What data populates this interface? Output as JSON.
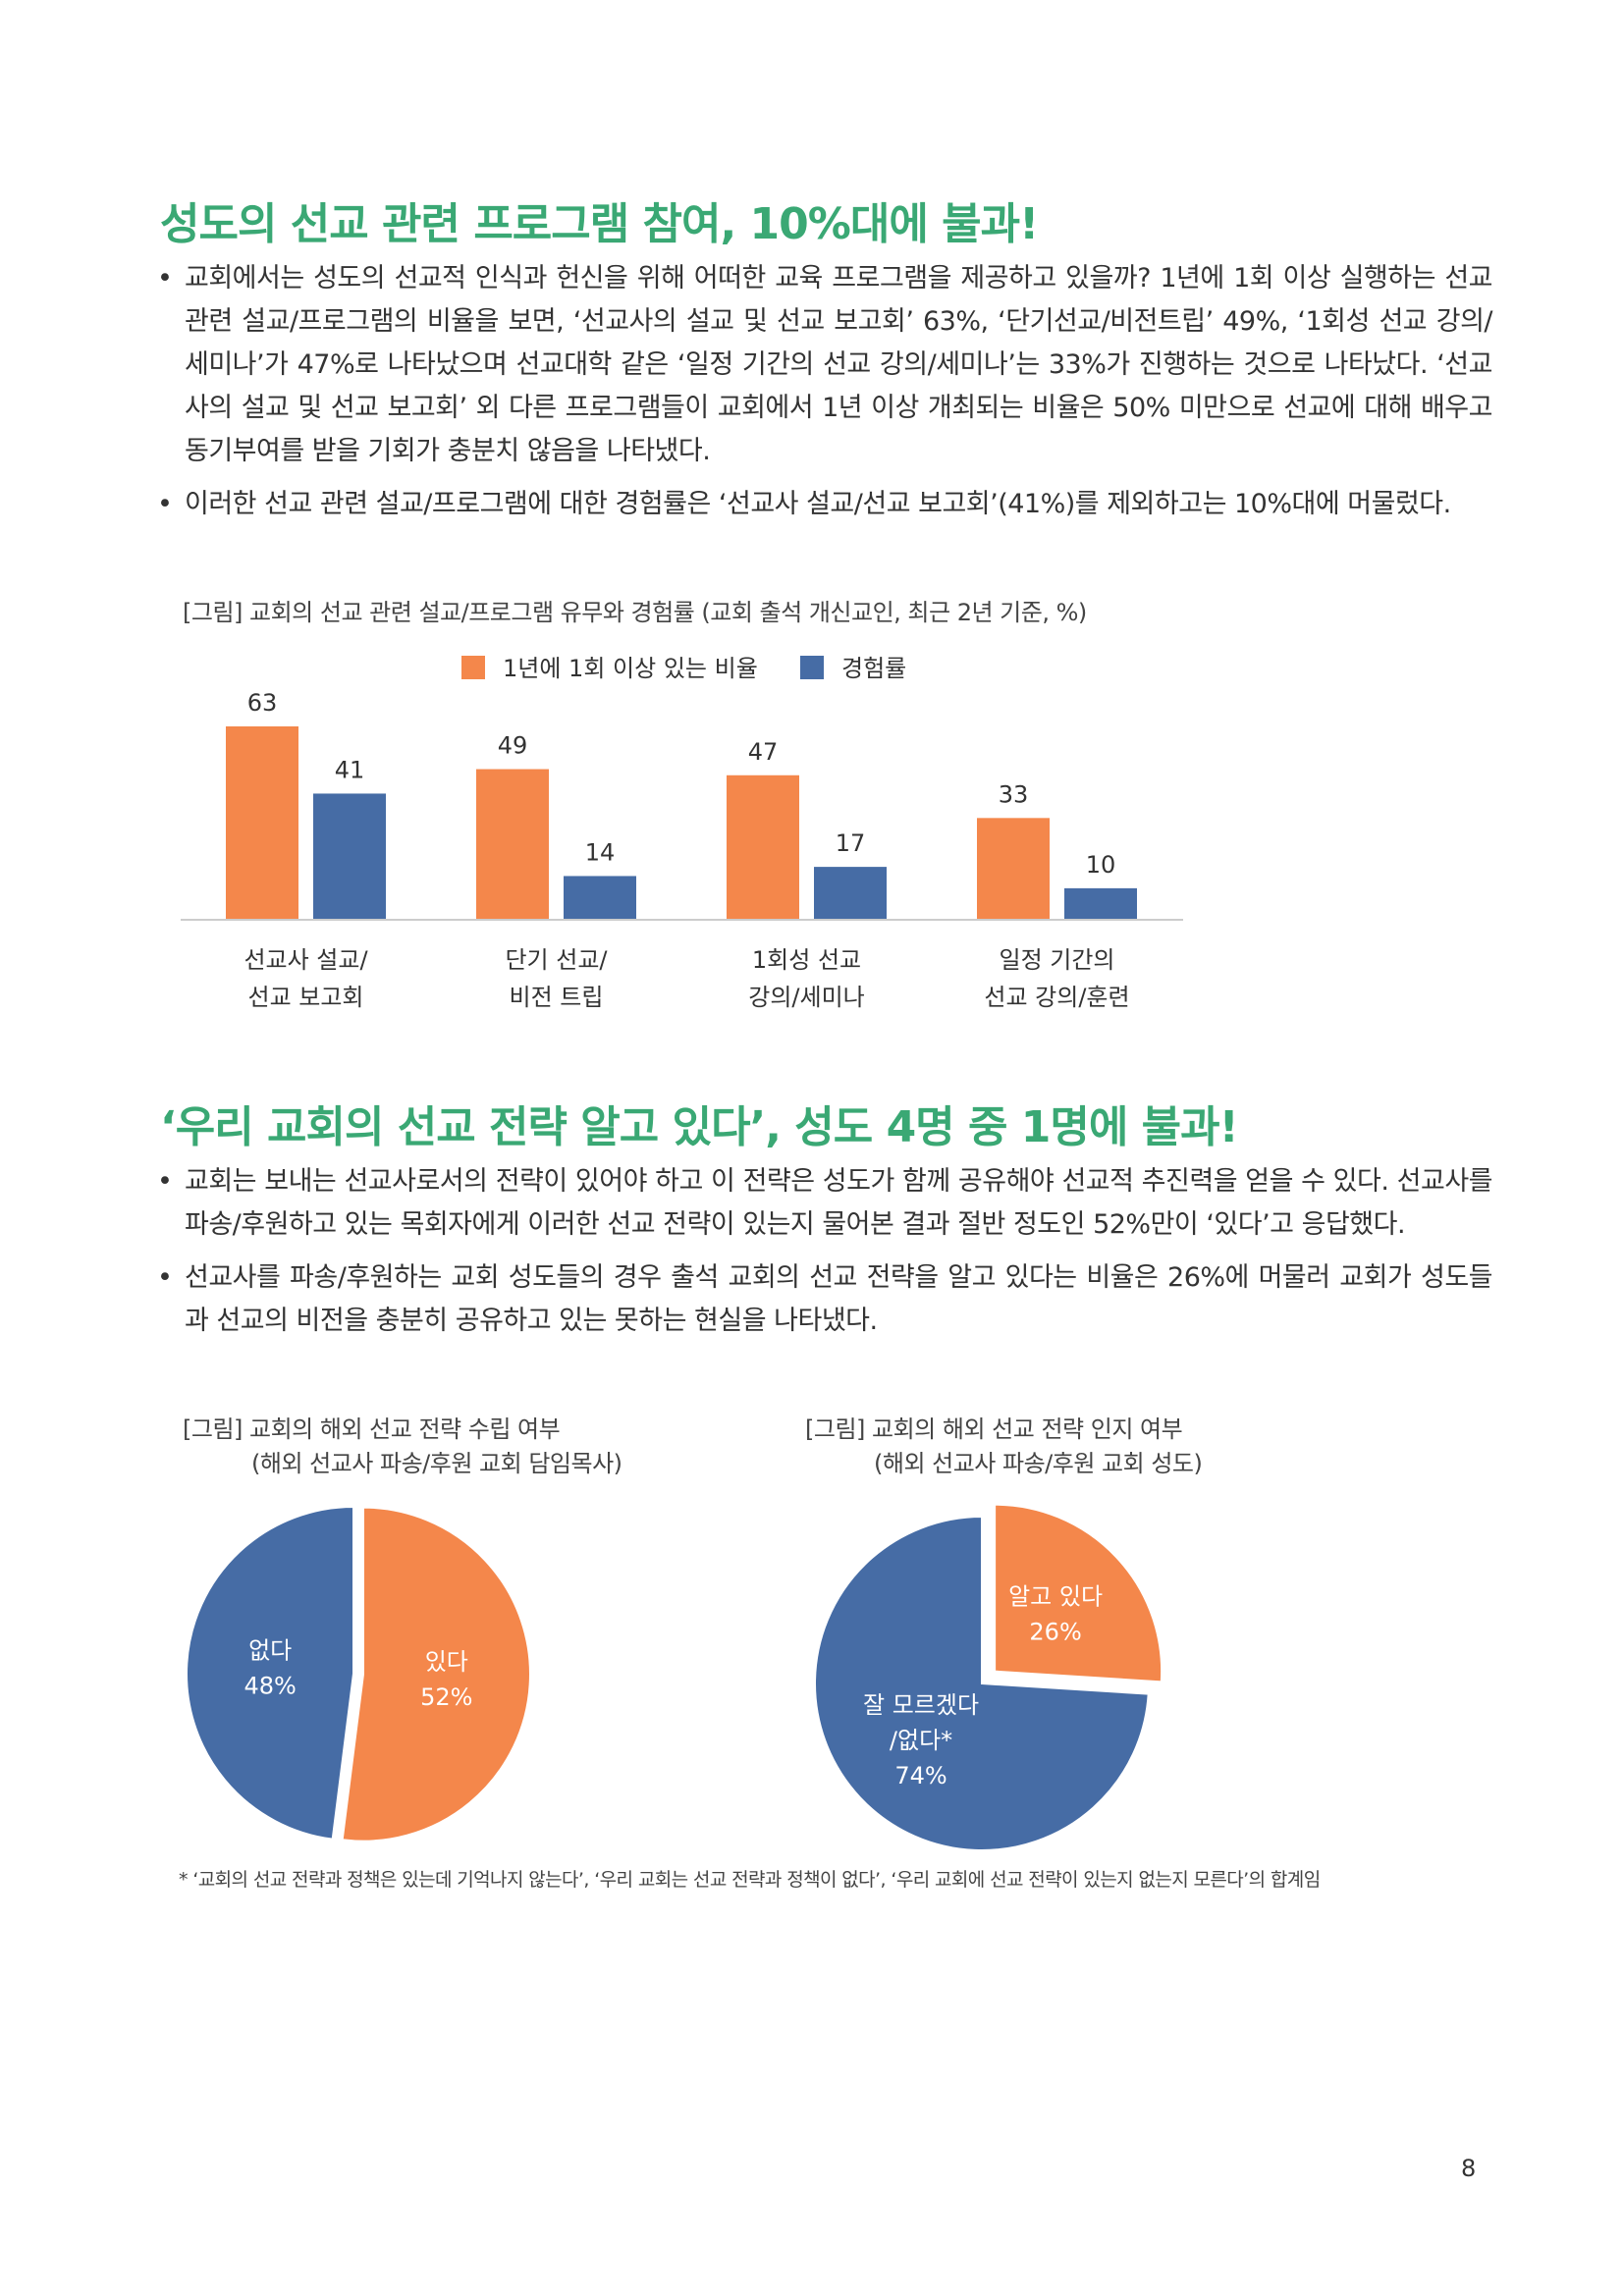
{
  "section1": {
    "heading": "성도의 선교 관련 프로그램 참여, 10%대에 불과!",
    "bullets": [
      "교회에서는 성도의 선교적 인식과 헌신을 위해 어떠한 교육 프로그램을 제공하고 있을까? 1년에 1회 이상 실행하는 선교 관련 설교/프로그램의 비율을 보면, ‘선교사의 설교 및 선교 보고회’ 63%, ‘단기선교/비전트립’ 49%, ‘1회성 선교 강의/세미나’가 47%로 나타났으며 선교대학 같은 ‘일정 기간의 선교 강의/세미나’는 33%가 진행하는 것으로 나타났다. ‘선교사의 설교 및 선교 보고회’ 외 다른 프로그램들이 교회에서 1년 이상 개최되는 비율은 50% 미만으로 선교에 대해 배우고 동기부여를 받을 기회가 충분치 않음을 나타냈다.",
      "이러한 선교 관련 설교/프로그램에 대한 경험률은 ‘선교사 설교/선교 보고회’(41%)를 제외하고는 10%대에 머물렀다."
    ],
    "caption": "[그림] 교회의 선교 관련 설교/프로그램 유무와 경험률 (교회 출석 개신교인, 최근 2년 기준, %)"
  },
  "section2": {
    "heading": "‘우리 교회의 선교 전략 알고 있다’, 성도 4명 중 1명에 불과!",
    "bullets": [
      "교회는 보내는 선교사로서의 전략이 있어야 하고 이 전략은 성도가 함께 공유해야 선교적 추진력을 얻을 수 있다. 선교사를 파송/후원하고 있는 목회자에게 이러한 선교 전략이 있는지 물어본 결과 절반 정도인 52%만이 ‘있다’고 응답했다.",
      "선교사를 파송/후원하는 교회 성도들의 경우 출석 교회의 선교 전략을 알고 있다는 비율은 26%에 머물러 교회가 성도들과 선교의 비전을 충분히 공유하고 있는 못하는 현실을 나타냈다."
    ],
    "pie1_caption": "[그림] 교회의 해외 선교 전략 수립 여부",
    "pie1_sub": "(해외 선교사 파송/후원 교회 담임목사)",
    "pie2_caption": "[그림] 교회의 해외 선교 전략 인지 여부",
    "pie2_sub": "(해외 선교사 파송/후원 교회 성도)"
  },
  "footnote": "* ‘교회의 선교 전략과 정책은 있는데 기억나지 않는다’, ‘우리 교회는 선교 전략과 정책이 없다’, ‘우리 교회에 선교 전략이 있는지 없는지 모른다’의 합계임",
  "page_number": "8",
  "colors": {
    "orange": "#f4874b",
    "blue": "#466ca5",
    "green": "#3aa874"
  },
  "chart_data": [
    {
      "type": "bar",
      "categories": [
        [
          "선교사 설교/",
          "선교 보고회"
        ],
        [
          "단기 선교/",
          "비전 트립"
        ],
        [
          "1회성 선교",
          "강의/세미나"
        ],
        [
          "일정 기간의",
          "선교 강의/훈련"
        ]
      ],
      "series": [
        {
          "name": "1년에 1회 이상 있는 비율",
          "values": [
            63,
            49,
            47,
            33
          ],
          "color": "#f4874b"
        },
        {
          "name": "경험률",
          "values": [
            41,
            14,
            17,
            10
          ],
          "color": "#466ca5"
        }
      ],
      "legend": "top",
      "ylim": [
        0,
        63
      ]
    },
    {
      "type": "pie",
      "slices": [
        {
          "label": "있다",
          "value": 52,
          "pct": "52%",
          "color": "#f4874b"
        },
        {
          "label": "없다",
          "value": 48,
          "pct": "48%",
          "color": "#466ca5"
        }
      ]
    },
    {
      "type": "pie",
      "slices": [
        {
          "label": "알고 있다",
          "value": 26,
          "pct": "26%",
          "color": "#f4874b"
        },
        {
          "label": "잘 모르겠다\n/없다*",
          "value": 74,
          "pct": "74%",
          "color": "#466ca5"
        }
      ]
    }
  ]
}
